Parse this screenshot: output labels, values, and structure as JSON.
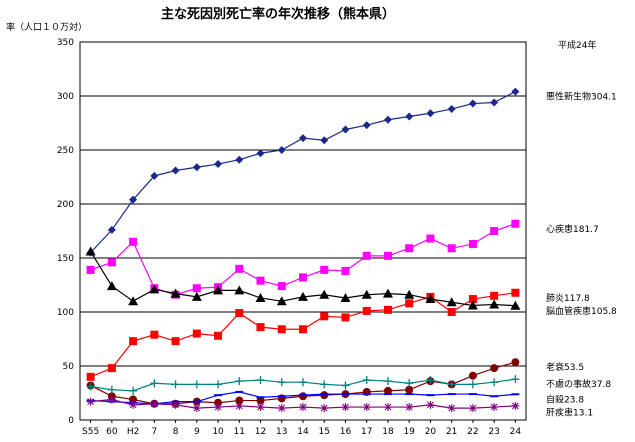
{
  "chart_data": {
    "type": "line",
    "title": "主な死因別死亡率の年次推移（熊本県）",
    "ylabel": "率（人口１０万対）",
    "note": "平成24年",
    "ylim": [
      0,
      350
    ],
    "yticks": [
      0,
      50,
      100,
      150,
      200,
      250,
      300,
      350
    ],
    "categories": [
      "S55",
      "60",
      "H2",
      "7",
      "8",
      "9",
      "10",
      "11",
      "12",
      "13",
      "14",
      "15",
      "16",
      "17",
      "18",
      "19",
      "20",
      "21",
      "22",
      "23",
      "24"
    ],
    "series": [
      {
        "name": "悪性新生物",
        "label": "悪性新生物304.1",
        "color": "#1b2a8a",
        "marker": "diamond",
        "values": [
          155,
          176,
          204,
          226,
          231,
          234,
          237,
          241,
          247,
          250,
          261,
          259,
          269,
          273,
          278,
          281,
          284,
          288,
          293,
          294,
          304.1
        ]
      },
      {
        "name": "心疾患",
        "label": "心疾患181.7",
        "color": "#ff00ff",
        "marker": "square",
        "values": [
          139,
          146,
          165,
          122,
          116,
          122,
          123,
          140,
          129,
          124,
          132,
          139,
          138,
          152,
          152,
          159,
          168,
          159,
          163,
          175,
          181.7
        ]
      },
      {
        "name": "肺炎",
        "label": "肺炎117.8",
        "color": "#ff0000",
        "marker": "square",
        "values": [
          40,
          48,
          73,
          79,
          73,
          80,
          78,
          99,
          86,
          84,
          84,
          96,
          95,
          101,
          102,
          108,
          114,
          100,
          112,
          115,
          117.8
        ]
      },
      {
        "name": "脳血管疾患",
        "label": "脳血管疾患105.8",
        "color": "#000000",
        "marker": "triangle",
        "values": [
          156,
          124,
          110,
          121,
          117,
          114,
          120,
          120,
          113,
          110,
          114,
          116,
          113,
          116,
          117,
          116,
          112,
          109,
          106,
          107,
          105.8
        ]
      },
      {
        "name": "老衰",
        "label": "老衰53.5",
        "color": "#800000",
        "marker": "circle",
        "values": [
          32,
          22,
          19,
          15,
          15,
          17,
          16,
          18,
          18,
          20,
          22,
          23,
          24,
          26,
          27,
          28,
          36,
          33,
          41,
          48,
          53.5
        ]
      },
      {
        "name": "不慮の事故",
        "label": "不慮の事故37.8",
        "color": "#008080",
        "marker": "plus",
        "values": [
          31,
          28,
          27,
          34,
          33,
          33,
          33,
          36,
          37,
          35,
          35,
          33,
          32,
          37,
          36,
          34,
          37,
          33,
          33,
          35,
          37.8
        ]
      },
      {
        "name": "自殺",
        "label": "自殺23.8",
        "color": "#0000ff",
        "marker": "dash",
        "values": [
          18,
          17,
          16,
          15,
          17,
          17,
          23,
          26,
          21,
          22,
          23,
          24,
          24,
          24,
          24,
          24,
          23,
          24,
          24,
          22,
          23.8
        ]
      },
      {
        "name": "肝疾患",
        "label": "肝疾患13.1",
        "color": "#800080",
        "marker": "star",
        "values": [
          17,
          19,
          14,
          15,
          14,
          11,
          12,
          13,
          12,
          11,
          12,
          11,
          12,
          12,
          12,
          12,
          14,
          11,
          11,
          12,
          13.1
        ]
      }
    ]
  }
}
